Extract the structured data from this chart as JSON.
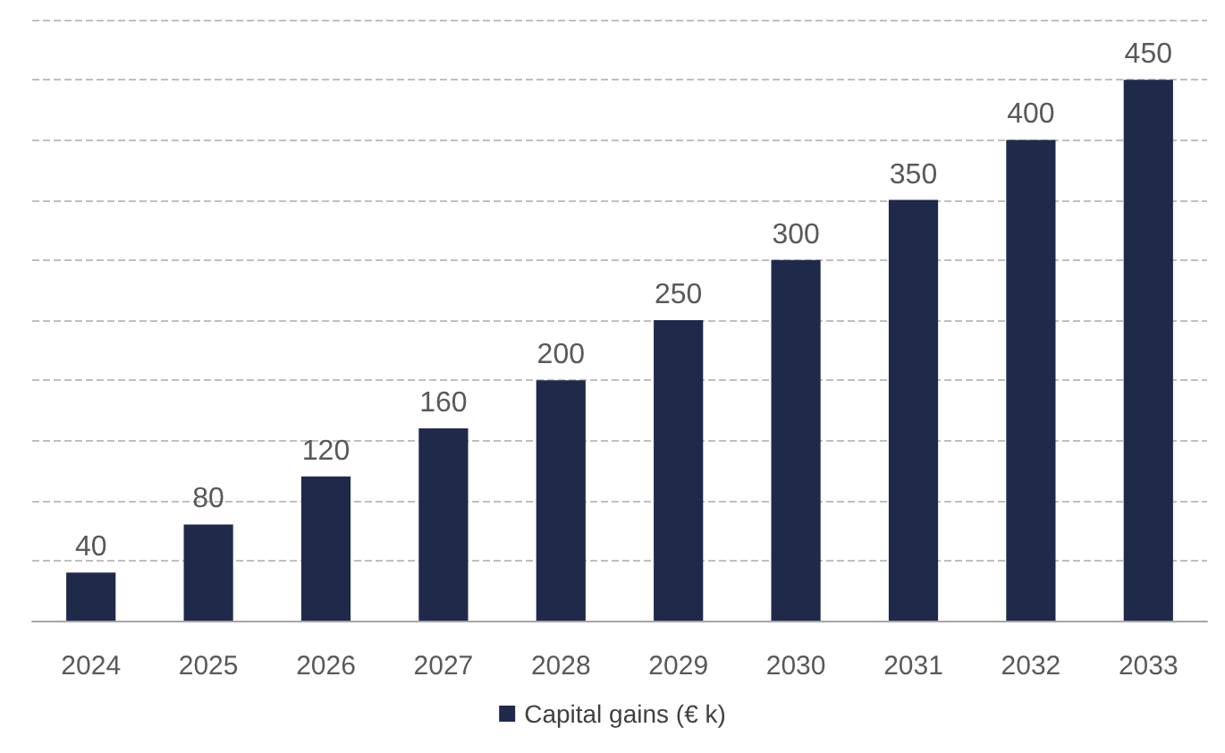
{
  "chart_data": {
    "type": "bar",
    "categories": [
      "2024",
      "2025",
      "2026",
      "2027",
      "2028",
      "2029",
      "2030",
      "2031",
      "2032",
      "2033"
    ],
    "series": [
      {
        "name": "Capital gains (€ k)",
        "color": "#1f2a4b",
        "values": [
          40,
          80,
          120,
          160,
          200,
          250,
          300,
          350,
          400,
          450
        ]
      }
    ],
    "ylim": [
      0,
      500
    ],
    "yticks": [
      {
        "value": 0,
        "label": null
      },
      {
        "value": 50,
        "label": null
      },
      {
        "value": 100,
        "label": null
      },
      {
        "value": 150,
        "label": null
      },
      {
        "value": 200,
        "label": null
      },
      {
        "value": 250,
        "label": null
      },
      {
        "value": 300,
        "label": null
      },
      {
        "value": 350,
        "label": null
      },
      {
        "value": 400,
        "label": null
      },
      {
        "value": 450,
        "label": null
      },
      {
        "value": 500,
        "label": null
      }
    ],
    "tick_labels": "x",
    "grid": "y",
    "legend": "bottom",
    "data_labels": true
  }
}
